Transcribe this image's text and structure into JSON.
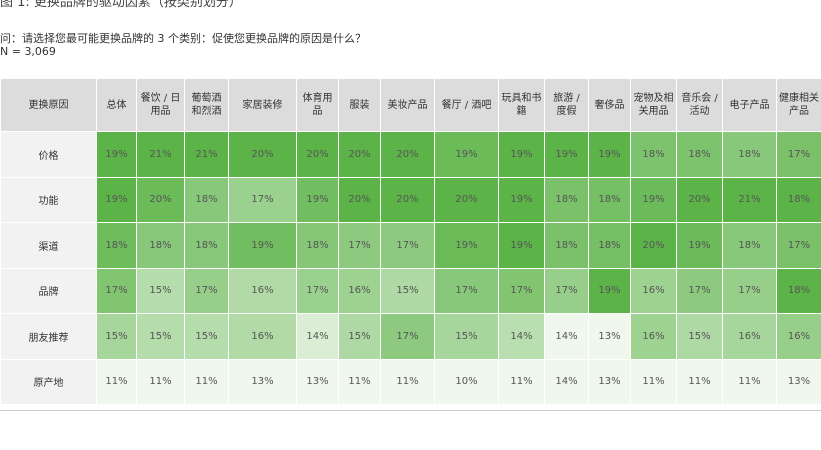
{
  "header": {
    "title": "图 1: 更换品牌的驱动因素（按类别划分）",
    "question": "问：请选择您最可能更换品牌的 3 个类别：促使您更换品牌的原因是什么？",
    "sample": "N = 3,069"
  },
  "table": {
    "columns": [
      "更换原因",
      "总体",
      "餐饮 / 日用品",
      "葡萄酒和烈酒",
      "家居装修",
      "体育用品",
      "服装",
      "美妆产品",
      "餐厅 / 酒吧",
      "玩具和书籍",
      "旅游 / 度假",
      "奢侈品",
      "宠物及相关用品",
      "音乐会 / 活动",
      "电子产品",
      "健康相关产品"
    ],
    "rows": [
      [
        "价格",
        "19%",
        "21%",
        "21%",
        "20%",
        "20%",
        "20%",
        "20%",
        "19%",
        "19%",
        "19%",
        "19%",
        "18%",
        "18%",
        "18%",
        "17%"
      ],
      [
        "功能",
        "19%",
        "20%",
        "18%",
        "17%",
        "19%",
        "20%",
        "20%",
        "20%",
        "19%",
        "18%",
        "18%",
        "19%",
        "20%",
        "21%",
        "18%"
      ],
      [
        "渠道",
        "18%",
        "18%",
        "18%",
        "19%",
        "18%",
        "17%",
        "17%",
        "19%",
        "19%",
        "18%",
        "18%",
        "20%",
        "19%",
        "18%",
        "17%"
      ],
      [
        "品牌",
        "17%",
        "15%",
        "17%",
        "16%",
        "17%",
        "16%",
        "15%",
        "17%",
        "17%",
        "17%",
        "19%",
        "16%",
        "17%",
        "17%",
        "18%"
      ],
      [
        "朋友推荐",
        "15%",
        "15%",
        "15%",
        "16%",
        "14%",
        "15%",
        "17%",
        "15%",
        "14%",
        "14%",
        "13%",
        "16%",
        "15%",
        "16%",
        "16%"
      ],
      [
        "原产地",
        "11%",
        "11%",
        "11%",
        "13%",
        "13%",
        "11%",
        "11%",
        "10%",
        "11%",
        "14%",
        "13%",
        "11%",
        "11%",
        "11%",
        "13%"
      ]
    ]
  }
}
